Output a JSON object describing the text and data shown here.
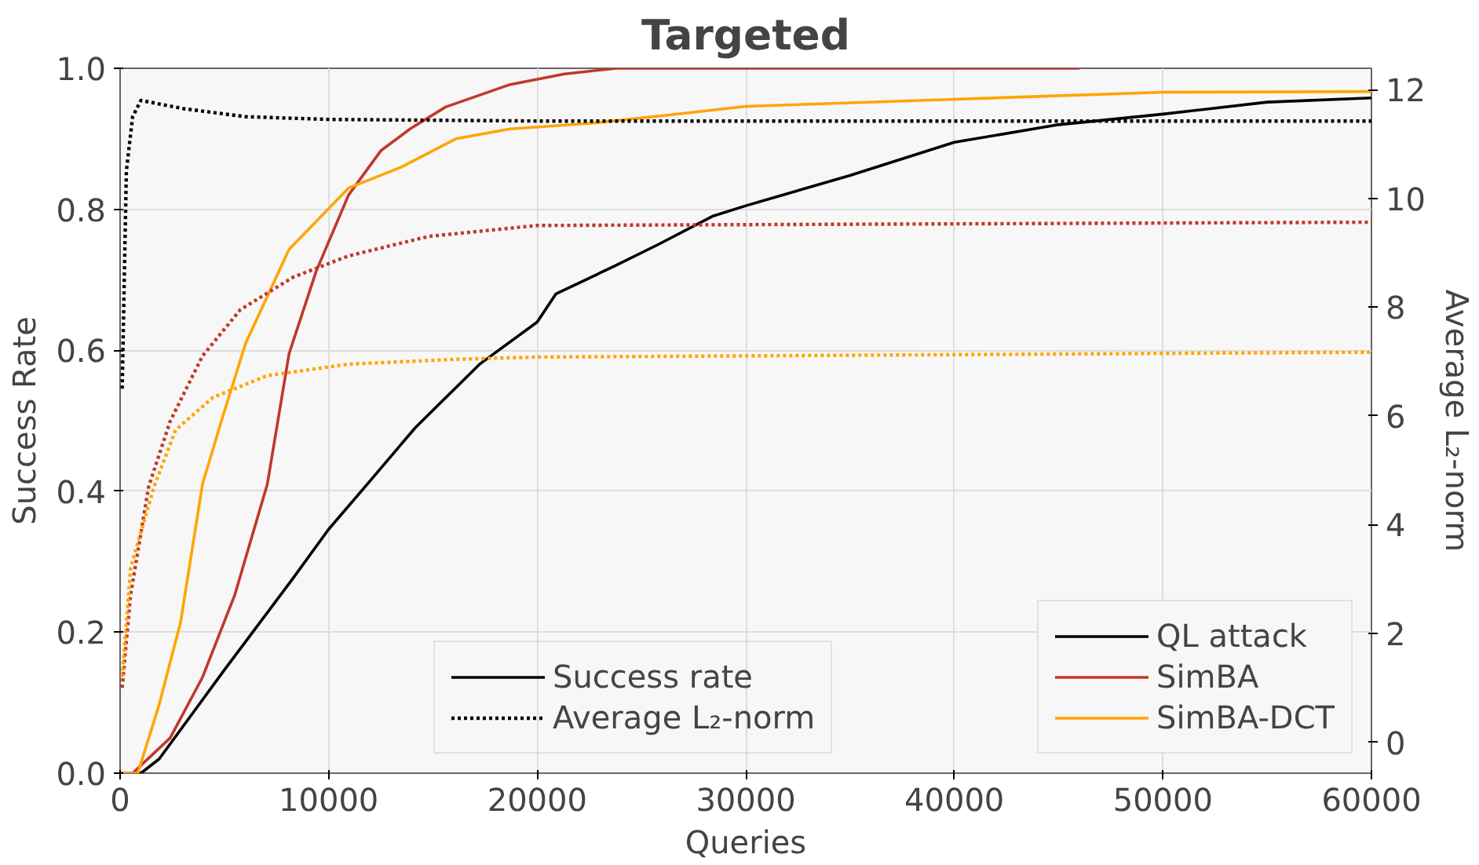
{
  "chart_data": {
    "type": "line",
    "title": "Targeted",
    "xlabel": "Queries",
    "ylabel": "Success Rate",
    "y2label": "Average L₂-norm",
    "xlim": [
      0,
      60000
    ],
    "xticks": [
      0,
      10000,
      20000,
      30000,
      40000,
      50000,
      60000
    ],
    "ylim": [
      0,
      1.0
    ],
    "yticks": [
      {
        "value": 0,
        "label": "0.0"
      },
      0.2,
      0.4,
      0.6,
      0.8,
      {
        "value": 1.0,
        "label": "1.0"
      }
    ],
    "y2lim": [
      -0.57,
      12.39
    ],
    "y2ticks": [
      0,
      2,
      4,
      6,
      8,
      10,
      12
    ],
    "grid": true,
    "legend": "bottom right",
    "annotations": [
      "Success rate",
      "Average L₂-norm"
    ],
    "series": [
      {
        "name": "QL attack",
        "color": "#000000",
        "line_style": "solid",
        "x": [
          0,
          1000,
          1870,
          4940,
          8280,
          10000,
          11850,
          14150,
          17230,
          20000,
          20900,
          23750,
          25800,
          28400,
          30000,
          35000,
          40000,
          45000,
          50000,
          55000,
          60000
        ],
        "values": [
          0,
          0,
          0.02,
          0.144,
          0.276,
          0.346,
          0.41,
          0.49,
          0.58,
          0.64,
          0.68,
          0.72,
          0.75,
          0.79,
          0.805,
          0.848,
          0.895,
          0.92,
          0.935,
          0.952,
          0.958
        ]
      },
      {
        "name": "SimBA",
        "color": "#c0392b",
        "line_style": "solid",
        "x": [
          0,
          600,
          2400,
          3950,
          5500,
          7060,
          8100,
          9400,
          10950,
          12500,
          13900,
          15600,
          18700,
          21300,
          23800,
          46000
        ],
        "values": [
          0,
          0,
          0.05,
          0.136,
          0.253,
          0.41,
          0.595,
          0.712,
          0.82,
          0.883,
          0.914,
          0.945,
          0.977,
          0.992,
          1.0,
          1.0
        ]
      },
      {
        "name": "SimBA-DCT",
        "color": "#ffa500",
        "line_style": "solid",
        "x": [
          0,
          850,
          1870,
          2900,
          3950,
          4860,
          6020,
          8100,
          9900,
          10950,
          13500,
          16100,
          18700,
          22600,
          26400,
          30000,
          40000,
          50000,
          60000
        ],
        "values": [
          0,
          0,
          0.097,
          0.214,
          0.41,
          0.5,
          0.61,
          0.743,
          0.798,
          0.83,
          0.86,
          0.9,
          0.914,
          0.922,
          0.934,
          0.946,
          0.956,
          0.966,
          0.967
        ]
      },
      {
        "color": "#000000",
        "line_style": "dotted",
        "axis": "y2",
        "x": [
          100,
          300,
          600,
          1000,
          3000,
          6000,
          10000,
          20000,
          60000
        ],
        "values": [
          6.5,
          10.5,
          11.5,
          11.8,
          11.65,
          11.5,
          11.45,
          11.42,
          11.42
        ]
      },
      {
        "color": "#c0392b",
        "line_style": "dotted",
        "axis": "y2",
        "x": [
          100,
          500,
          1370,
          2400,
          3950,
          5760,
          8300,
          10950,
          14800,
          20000,
          60000
        ],
        "values": [
          1.0,
          2.7,
          4.7,
          5.9,
          7.1,
          7.95,
          8.55,
          8.94,
          9.3,
          9.5,
          9.56
        ]
      },
      {
        "color": "#ffa500",
        "line_style": "dotted",
        "axis": "y2",
        "x": [
          100,
          500,
          1630,
          2660,
          4460,
          7060,
          10950,
          16100,
          20000,
          60000
        ],
        "values": [
          1.2,
          3.2,
          4.7,
          5.74,
          6.34,
          6.74,
          6.95,
          7.04,
          7.08,
          7.17
        ]
      }
    ]
  }
}
